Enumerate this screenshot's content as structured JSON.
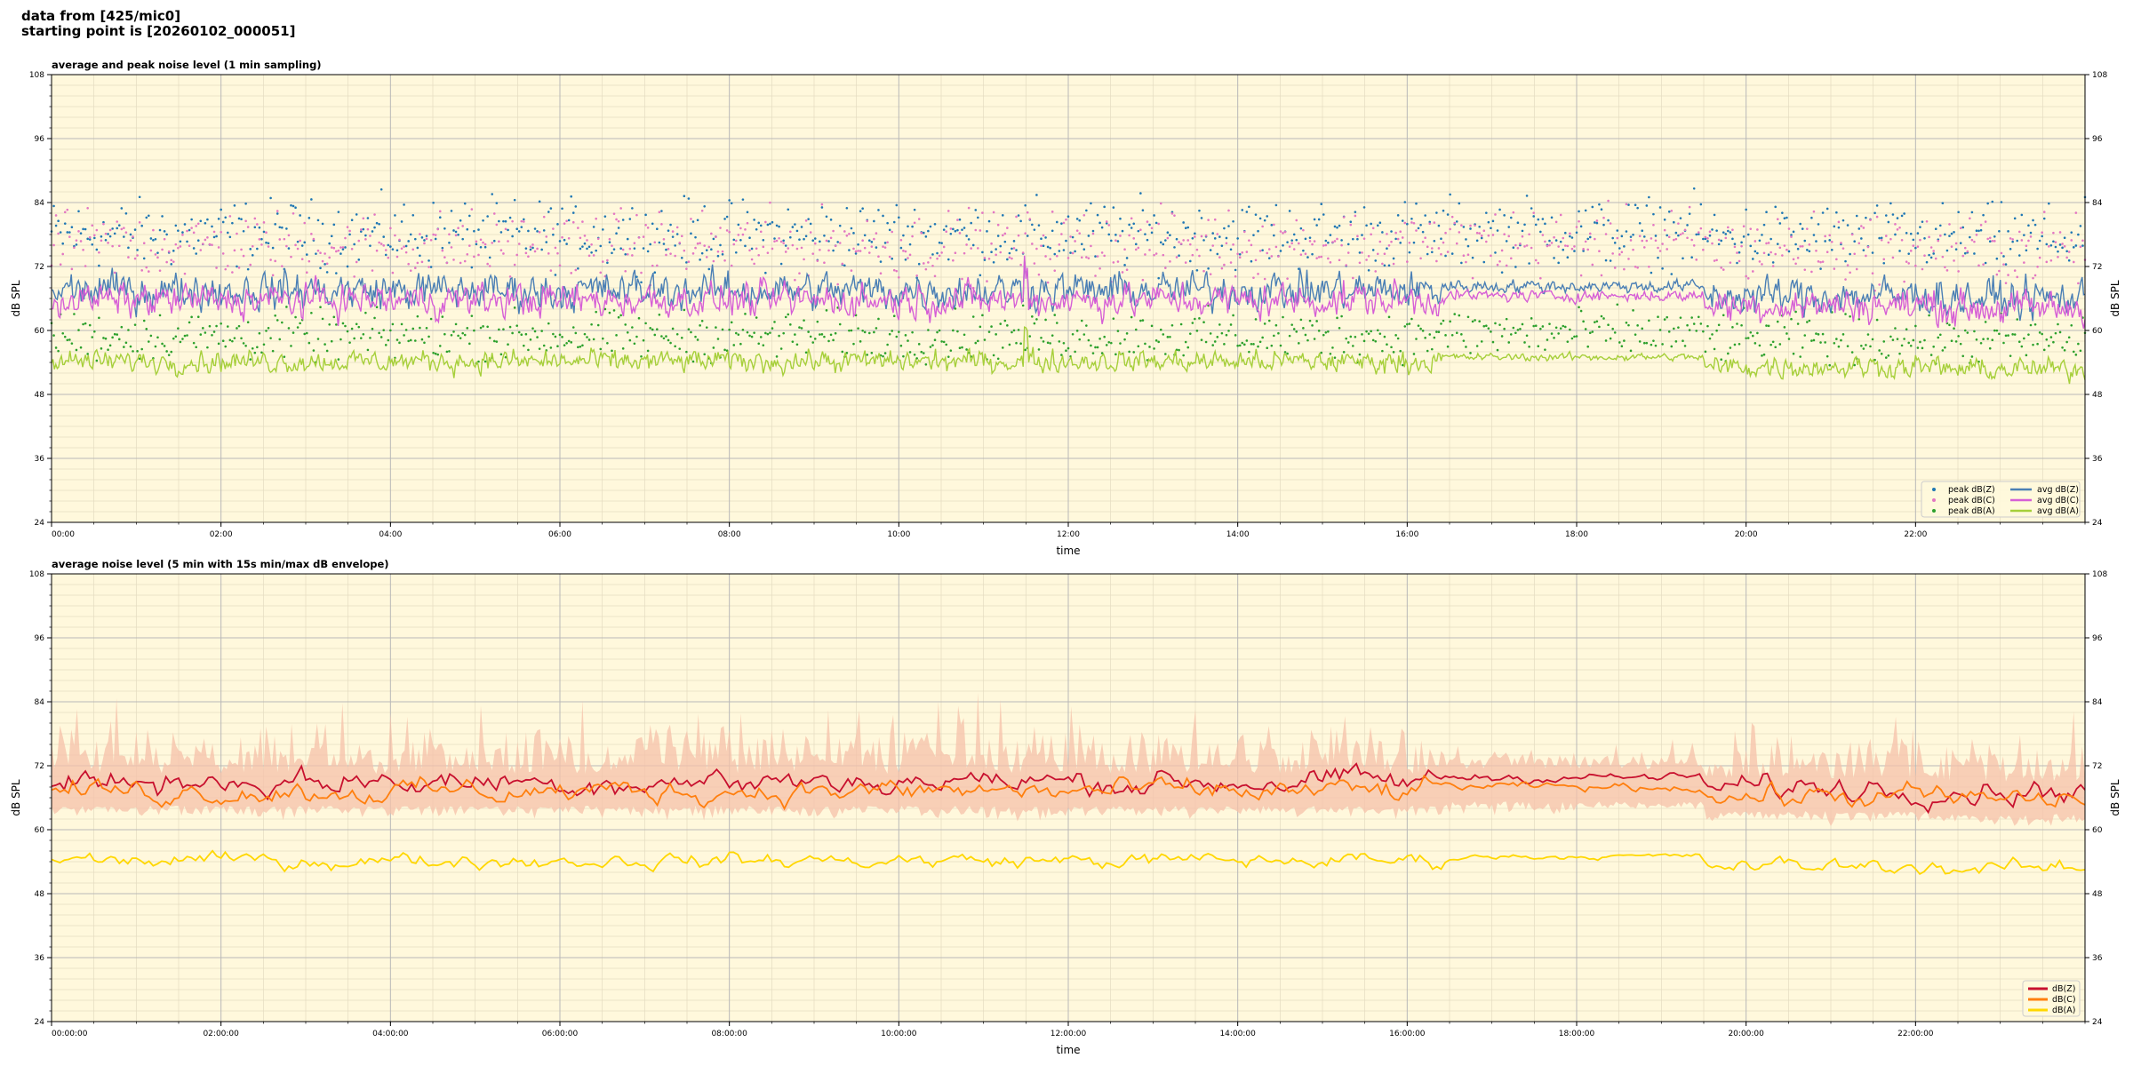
{
  "header": {
    "line1": "data from [425/mic0]",
    "line2": "starting point is [20260102_000051]"
  },
  "colors": {
    "background": "#fff8dc",
    "grid_major": "#b8b8b8",
    "grid_minor": "#e4dcc0",
    "peak_z": "#1f77b4",
    "peak_c": "#e377c2",
    "peak_a": "#2ca02c",
    "avg_z": "#4a7fb5",
    "avg_c": "#d65fd6",
    "avg_a": "#a6cf3a",
    "z": "#c8102e",
    "c": "#ff7f0e",
    "a": "#ffd700",
    "envelope": "#f6c2aa"
  },
  "chart_data": [
    {
      "type": "line",
      "title": "average and peak noise level (1 min sampling)",
      "xlabel": "time",
      "ylabel": "dB SPL",
      "ylim": [
        24,
        108
      ],
      "yticks": [
        "24",
        "36",
        "48",
        "60",
        "72",
        "84",
        "96",
        "108"
      ],
      "xlim_hours": [
        0,
        24
      ],
      "xticks": [
        "00:00",
        "02:00",
        "04:00",
        "06:00",
        "08:00",
        "10:00",
        "12:00",
        "14:00",
        "16:00",
        "18:00",
        "20:00",
        "22:00"
      ],
      "grid": true,
      "legend_position": "bottom-right",
      "legend": [
        "peak dB(Z)",
        "peak dB(C)",
        "peak dB(A)",
        "avg dB(Z)",
        "avg dB(C)",
        "avg dB(A)"
      ],
      "series_approx": {
        "avg_z_range": [
          62,
          76
        ],
        "avg_c_range": [
          60,
          72
        ],
        "avg_a_range": [
          51,
          60
        ],
        "peak_z_range": [
          68,
          88
        ],
        "peak_c_range": [
          66,
          86
        ],
        "peak_a_range": [
          55,
          66
        ]
      }
    },
    {
      "type": "area",
      "title": "average noise level (5 min with 15s min/max dB envelope)",
      "xlabel": "time",
      "ylabel": "dB SPL",
      "ylim": [
        24,
        108
      ],
      "yticks": [
        "24",
        "36",
        "48",
        "60",
        "72",
        "84",
        "96",
        "108"
      ],
      "xlim_hours": [
        0,
        24
      ],
      "xticks": [
        "00:00:00",
        "02:00:00",
        "04:00:00",
        "06:00:00",
        "08:00:00",
        "10:00:00",
        "12:00:00",
        "14:00:00",
        "16:00:00",
        "18:00:00",
        "20:00:00",
        "22:00:00"
      ],
      "grid": true,
      "legend_position": "bottom-right",
      "legend": [
        "dB(Z)",
        "dB(C)",
        "dB(A)"
      ],
      "series_approx": {
        "z_range": [
          64,
          72
        ],
        "c_range": [
          62,
          70
        ],
        "a_range": [
          50,
          56
        ],
        "envelope_range": [
          60,
          88
        ]
      }
    }
  ]
}
